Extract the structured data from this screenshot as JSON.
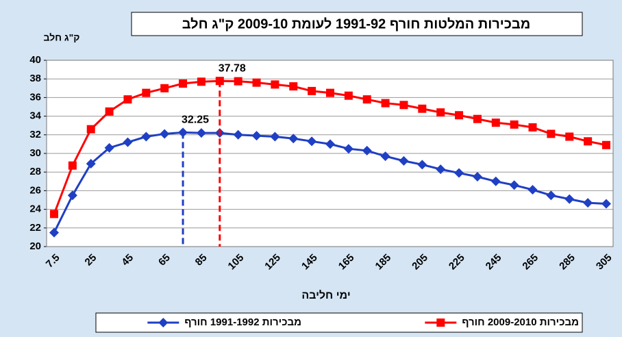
{
  "chart_data": {
    "type": "line",
    "title": "מבכירות המלטות חורף 1991-92 לעומת  2009-10 ק\"ג חלב",
    "y_label": "ק\"ג חלב",
    "x_label": "ימי חליבה",
    "categories": [
      "7.5",
      null,
      "25",
      null,
      "45",
      null,
      "65",
      null,
      "85",
      null,
      "105",
      null,
      "125",
      null,
      "145",
      null,
      "165",
      null,
      "185",
      null,
      "205",
      null,
      "225",
      null,
      "245",
      null,
      "265",
      null,
      "285",
      null,
      "305"
    ],
    "series": [
      {
        "name": "מבכירות 1991-1992 חורף",
        "color": "#1f3fc4",
        "marker": "diamond",
        "values": [
          21.5,
          25.5,
          28.9,
          30.6,
          31.2,
          31.8,
          32.1,
          32.25,
          32.2,
          32.2,
          32.0,
          31.9,
          31.8,
          31.6,
          31.3,
          31.0,
          30.5,
          30.3,
          29.7,
          29.2,
          28.8,
          28.3,
          27.9,
          27.5,
          27.0,
          26.6,
          26.1,
          25.5,
          25.1,
          24.7,
          24.6
        ],
        "value_labels": [
          null,
          null,
          null,
          null,
          null,
          null,
          null,
          "32.25",
          null,
          null,
          null,
          null,
          null,
          null,
          null,
          null,
          null,
          null,
          null,
          null,
          null,
          null,
          null,
          null,
          null,
          null,
          null,
          null,
          null,
          null,
          null
        ]
      },
      {
        "name": "מבכירות 2009-2010 חורף",
        "color": "#ff0000",
        "marker": "square",
        "values": [
          23.5,
          28.7,
          32.6,
          34.5,
          35.8,
          36.5,
          37.0,
          37.5,
          37.7,
          37.78,
          37.75,
          37.6,
          37.4,
          37.2,
          36.7,
          36.5,
          36.2,
          35.8,
          35.4,
          35.2,
          34.8,
          34.4,
          34.1,
          33.7,
          33.3,
          33.1,
          32.8,
          32.1,
          31.8,
          31.3,
          30.9
        ],
        "value_labels": [
          null,
          null,
          null,
          null,
          null,
          null,
          null,
          null,
          null,
          "37.78",
          null,
          null,
          null,
          null,
          null,
          null,
          null,
          null,
          null,
          null,
          null,
          null,
          null,
          null,
          null,
          null,
          null,
          null,
          null,
          null,
          null
        ]
      }
    ],
    "ylim": [
      20,
      40
    ],
    "yticks": [
      20,
      22,
      24,
      26,
      28,
      30,
      32,
      34,
      36,
      38,
      40
    ],
    "grid": true
  }
}
